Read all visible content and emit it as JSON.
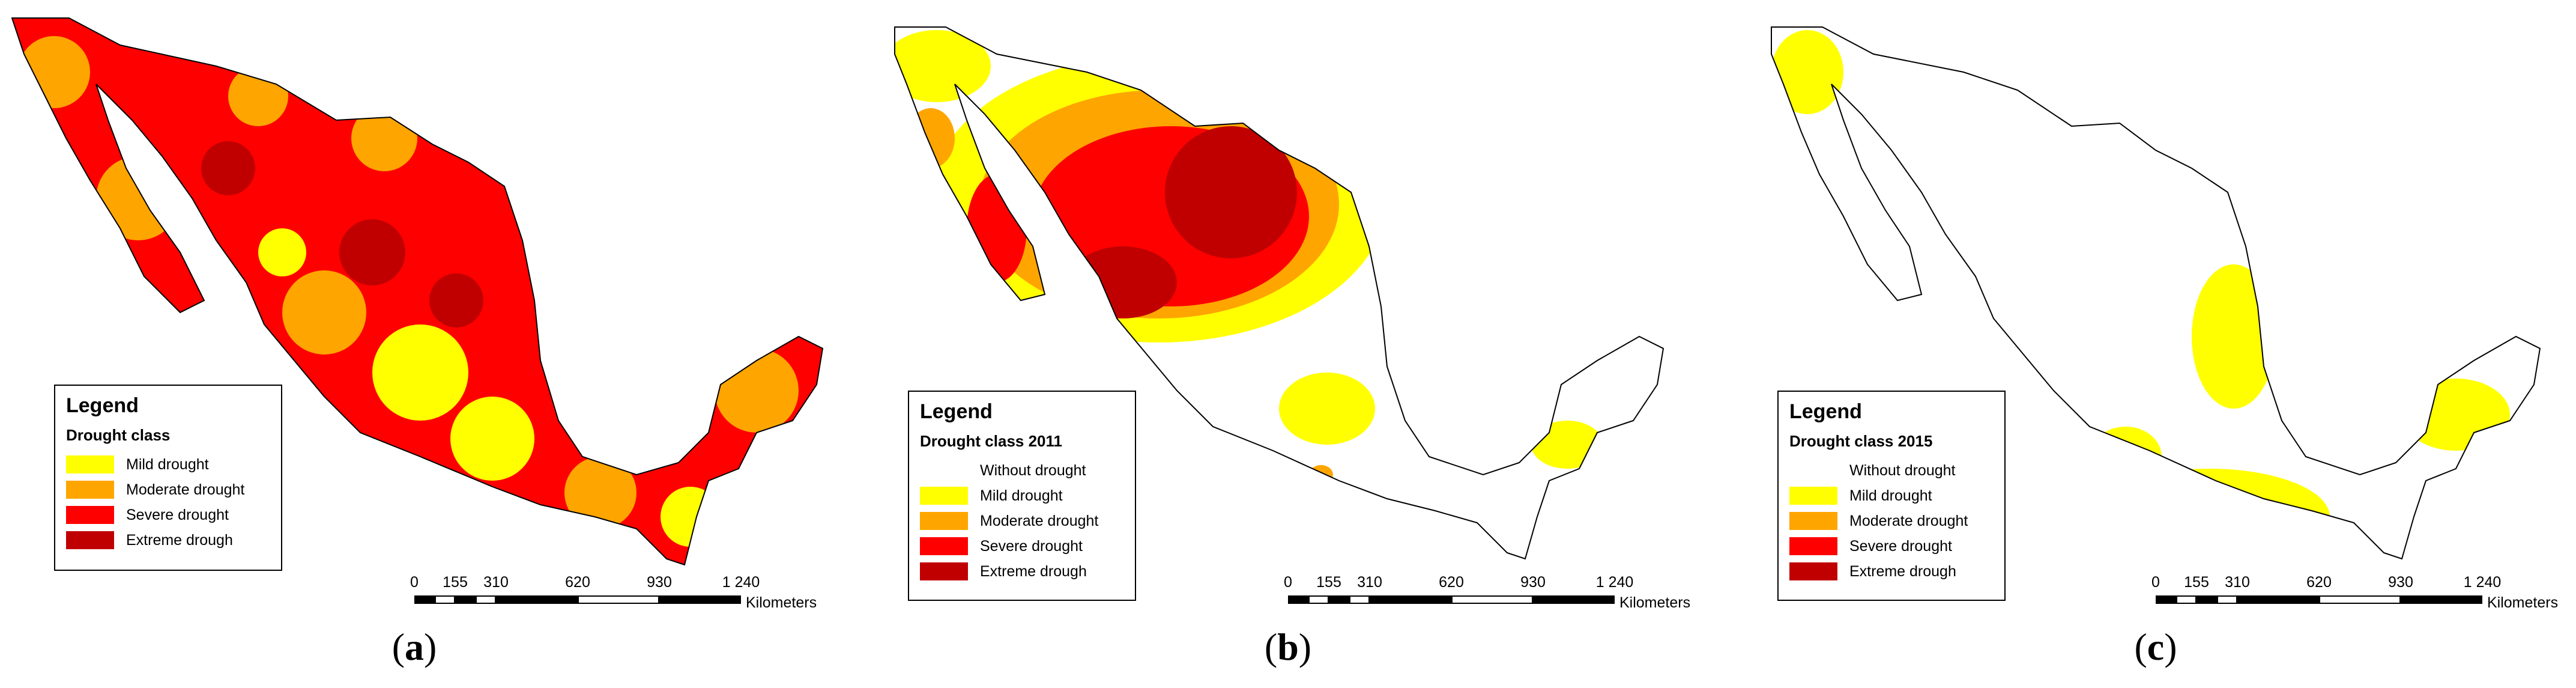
{
  "colors": {
    "none": "#ffffff",
    "mild": "#ffff00",
    "moderate": "#ffa500",
    "severe": "#ff0000",
    "extreme": "#c00000",
    "outline": "#000000"
  },
  "panels": [
    {
      "letter": "a",
      "legend": {
        "title": "Legend",
        "subtitle": "Drought class",
        "items": [
          {
            "label": "Mild drought",
            "class": "mild"
          },
          {
            "label": "Moderate drought",
            "class": "moderate"
          },
          {
            "label": "Severe drought",
            "class": "severe"
          },
          {
            "label": "Extreme drough",
            "class": "extreme"
          }
        ]
      }
    },
    {
      "letter": "b",
      "legend": {
        "title": "Legend",
        "subtitle": "Drought class 2011",
        "items": [
          {
            "label": "Without drought",
            "class": "none"
          },
          {
            "label": "Mild drought",
            "class": "mild"
          },
          {
            "label": "Moderate drought",
            "class": "moderate"
          },
          {
            "label": "Severe drought",
            "class": "severe"
          },
          {
            "label": "Extreme drough",
            "class": "extreme"
          }
        ]
      }
    },
    {
      "letter": "c",
      "legend": {
        "title": "Legend",
        "subtitle": "Drought class 2015",
        "items": [
          {
            "label": "Without drought",
            "class": "none"
          },
          {
            "label": "Mild drought",
            "class": "mild"
          },
          {
            "label": "Moderate drought",
            "class": "moderate"
          },
          {
            "label": "Severe drought",
            "class": "severe"
          },
          {
            "label": "Extreme drough",
            "class": "extreme"
          }
        ]
      }
    }
  ],
  "scale": {
    "ticks": [
      "0",
      "155",
      "310",
      "620",
      "930",
      "1 240"
    ],
    "units": "Kilometers"
  }
}
